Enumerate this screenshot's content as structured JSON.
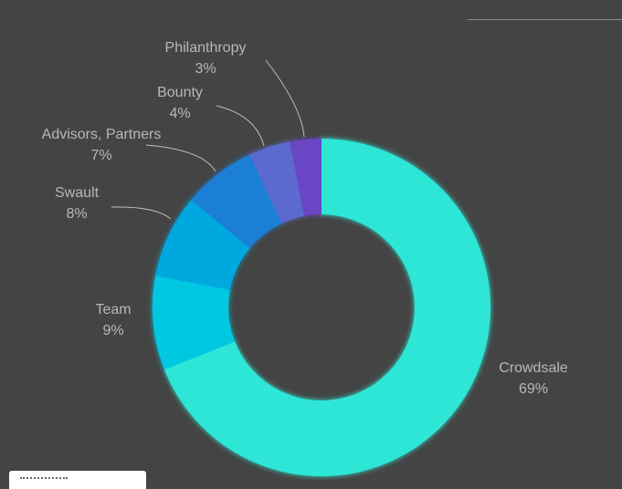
{
  "chart_data": {
    "type": "pie",
    "categories": [
      "Crowdsale",
      "Team",
      "Swault",
      "Advisors, Partners",
      "Bounty",
      "Philanthropy"
    ],
    "values": [
      69,
      9,
      8,
      7,
      4,
      3
    ],
    "value_labels": [
      "69%",
      "9%",
      "8%",
      "7%",
      "4%",
      "3%"
    ],
    "colors": [
      "#2ee6d6",
      "#00c8e0",
      "#00a8e0",
      "#1f7fd6",
      "#5b6bd0",
      "#6a45c4"
    ],
    "donut": true,
    "legend": "none"
  }
}
